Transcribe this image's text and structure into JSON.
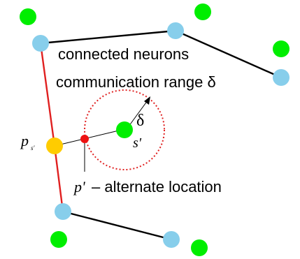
{
  "labels": {
    "connected_neurons": "connected neurons",
    "communication_range": "communication range δ",
    "delta": "δ",
    "p_s_main": "p",
    "p_s_sub": "s'",
    "s_prime": "s'",
    "p_prime": "p'",
    "alternate_location": "– alternate location"
  },
  "colors": {
    "neuron": "#87ceeb",
    "sensor": "#00ee00",
    "link": "#000000",
    "path": "#e02020",
    "p_s_node": "#ffcc00",
    "p_prime_node": "#ee1111",
    "range_circle": "#e02020"
  },
  "icons": {
    "range_arrow": "arrow-icon"
  }
}
